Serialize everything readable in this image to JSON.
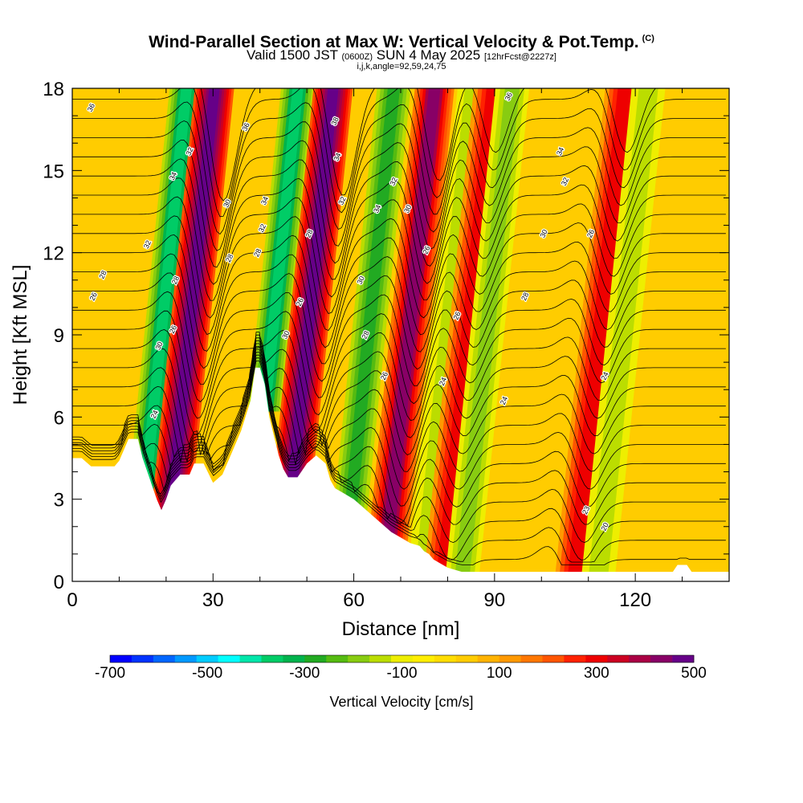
{
  "title": {
    "main": "Wind-Parallel Section at Max W: Vertical Velocity & Pot.Temp.",
    "copyright": "(C)",
    "valid_prefix": "Valid 1500 JST",
    "valid_utc": "(0600Z)",
    "valid_date": "SUN 4 May 2025",
    "forecast": "[12hrFcst@2227z]",
    "indices": "i,j,k,angle=92,59,24,75"
  },
  "chart_data": {
    "type": "contour",
    "xlabel": "Distance [nm]",
    "ylabel": "Height [Kft MSL]",
    "xlim": [
      0,
      140
    ],
    "ylim": [
      0,
      18
    ],
    "x_ticks": [
      0,
      30,
      60,
      90,
      120
    ],
    "y_ticks": [
      0,
      3,
      6,
      9,
      12,
      15,
      18
    ],
    "terrain": [
      [
        0,
        4.5
      ],
      [
        2,
        4.5
      ],
      [
        4,
        4.2
      ],
      [
        7,
        4.2
      ],
      [
        9,
        4.2
      ],
      [
        10,
        4.4
      ],
      [
        11,
        4.8
      ],
      [
        12,
        5.2
      ],
      [
        14,
        5.2
      ],
      [
        15,
        4.5
      ],
      [
        16,
        4.0
      ],
      [
        17,
        3.5
      ],
      [
        18,
        3.0
      ],
      [
        19,
        2.6
      ],
      [
        20,
        3.0
      ],
      [
        21,
        3.5
      ],
      [
        23,
        3.9
      ],
      [
        25,
        3.9
      ],
      [
        26,
        4.3
      ],
      [
        28,
        4.3
      ],
      [
        30,
        3.6
      ],
      [
        32,
        3.9
      ],
      [
        34,
        4.7
      ],
      [
        36,
        5.5
      ],
      [
        38,
        6.6
      ],
      [
        39,
        7.8
      ],
      [
        40,
        7.8
      ],
      [
        41,
        7.2
      ],
      [
        42,
        6.0
      ],
      [
        43,
        5.3
      ],
      [
        44,
        4.6
      ],
      [
        45,
        4.1
      ],
      [
        46,
        3.8
      ],
      [
        48,
        3.8
      ],
      [
        50,
        4.3
      ],
      [
        52,
        4.6
      ],
      [
        54,
        4.3
      ],
      [
        55,
        3.7
      ],
      [
        56,
        3.4
      ],
      [
        58,
        3.2
      ],
      [
        60,
        3.0
      ],
      [
        62,
        2.7
      ],
      [
        64,
        2.4
      ],
      [
        66,
        2.1
      ],
      [
        68,
        1.8
      ],
      [
        70,
        1.6
      ],
      [
        72,
        1.4
      ],
      [
        74,
        1.3
      ],
      [
        75,
        1.1
      ],
      [
        76,
        1.0
      ],
      [
        77,
        0.8
      ],
      [
        78,
        0.7
      ],
      [
        80,
        0.5
      ],
      [
        83,
        0.35
      ],
      [
        85,
        0.35
      ],
      [
        128,
        0.35
      ],
      [
        129,
        0.6
      ],
      [
        131,
        0.6
      ],
      [
        132,
        0.35
      ],
      [
        140,
        0.35
      ]
    ],
    "velocity_features": [
      {
        "x": 15.5,
        "w": -350,
        "note": "downdraft"
      },
      {
        "x": 21,
        "w": 500,
        "note": "updraft"
      },
      {
        "x": 41,
        "w": -350,
        "note": "downdraft"
      },
      {
        "x": 46.5,
        "w": 480,
        "note": "updraft"
      },
      {
        "x": 59,
        "w": -300,
        "note": "downdraft"
      },
      {
        "x": 67,
        "w": 420,
        "note": "updraft"
      },
      {
        "x": 75,
        "w": -150,
        "note": "downdraft"
      },
      {
        "x": 79,
        "w": 300,
        "note": "updraft"
      },
      {
        "x": 83,
        "w": -200,
        "note": "downdraft"
      },
      {
        "x": 107,
        "w": 300,
        "note": "updraft"
      },
      {
        "x": 112,
        "w": -150,
        "note": "downdraft"
      }
    ],
    "isentrope_labels": [
      {
        "x": 4,
        "y": 17.3,
        "text": "36"
      },
      {
        "x": 37,
        "y": 16.6,
        "text": "36"
      },
      {
        "x": 56,
        "y": 16.8,
        "text": "38"
      },
      {
        "x": 93,
        "y": 17.7,
        "text": "36"
      },
      {
        "x": 25,
        "y": 15.7,
        "text": "32"
      },
      {
        "x": 21.5,
        "y": 14.8,
        "text": "34"
      },
      {
        "x": 56.5,
        "y": 15.5,
        "text": "34"
      },
      {
        "x": 104,
        "y": 15.7,
        "text": "34"
      },
      {
        "x": 68.5,
        "y": 14.6,
        "text": "32"
      },
      {
        "x": 105,
        "y": 14.6,
        "text": "32"
      },
      {
        "x": 41,
        "y": 13.9,
        "text": "34"
      },
      {
        "x": 57.5,
        "y": 13.9,
        "text": "32"
      },
      {
        "x": 33,
        "y": 13.8,
        "text": "30"
      },
      {
        "x": 65,
        "y": 13.6,
        "text": "34"
      },
      {
        "x": 71.5,
        "y": 13.6,
        "text": "30"
      },
      {
        "x": 40.5,
        "y": 12.9,
        "text": "32"
      },
      {
        "x": 50.5,
        "y": 12.7,
        "text": "28"
      },
      {
        "x": 100.5,
        "y": 12.7,
        "text": "30"
      },
      {
        "x": 110.5,
        "y": 12.7,
        "text": "26"
      },
      {
        "x": 16,
        "y": 12.3,
        "text": "32"
      },
      {
        "x": 33.5,
        "y": 11.8,
        "text": "28"
      },
      {
        "x": 39.5,
        "y": 12.0,
        "text": "28"
      },
      {
        "x": 75.5,
        "y": 12.1,
        "text": "26"
      },
      {
        "x": 6.5,
        "y": 11.2,
        "text": "28"
      },
      {
        "x": 22,
        "y": 11.0,
        "text": "28"
      },
      {
        "x": 61.5,
        "y": 11.0,
        "text": "30"
      },
      {
        "x": 4.5,
        "y": 10.4,
        "text": "26"
      },
      {
        "x": 96.5,
        "y": 10.4,
        "text": "28"
      },
      {
        "x": 48.5,
        "y": 10.2,
        "text": "26"
      },
      {
        "x": 82,
        "y": 9.7,
        "text": "26"
      },
      {
        "x": 21.5,
        "y": 9.2,
        "text": "26"
      },
      {
        "x": 45.5,
        "y": 9.0,
        "text": "30"
      },
      {
        "x": 62.5,
        "y": 9.0,
        "text": "28"
      },
      {
        "x": 18.5,
        "y": 8.6,
        "text": "30"
      },
      {
        "x": 66.5,
        "y": 7.5,
        "text": "26"
      },
      {
        "x": 79,
        "y": 7.3,
        "text": "24"
      },
      {
        "x": 113.5,
        "y": 7.5,
        "text": "24"
      },
      {
        "x": 92,
        "y": 6.6,
        "text": "24"
      },
      {
        "x": 17.5,
        "y": 6.1,
        "text": "24"
      },
      {
        "x": 109.5,
        "y": 2.6,
        "text": "23"
      },
      {
        "x": 113.5,
        "y": 2.0,
        "text": "20"
      }
    ],
    "colorbar": {
      "label": "Vertical Velocity [cm/s]",
      "min": -700,
      "max": 500,
      "tick_values": [
        -700,
        -500,
        -300,
        -100,
        100,
        300,
        500
      ],
      "tick_labels": [
        "-700",
        "-500",
        "-300",
        "-100",
        "100",
        "300",
        "500"
      ],
      "colors": [
        "#0000ff",
        "#0033ff",
        "#0066ff",
        "#0099ff",
        "#00ccff",
        "#00ffff",
        "#00e6aa",
        "#00cc66",
        "#00b34d",
        "#22aa22",
        "#55bb11",
        "#88cc11",
        "#bbdd00",
        "#eeee00",
        "#ffee00",
        "#ffdd00",
        "#ffcc00",
        "#ffb300",
        "#ff9900",
        "#ff7700",
        "#ff5500",
        "#ff2200",
        "#ee0000",
        "#cc0022",
        "#aa0044",
        "#880066",
        "#660088"
      ]
    }
  }
}
